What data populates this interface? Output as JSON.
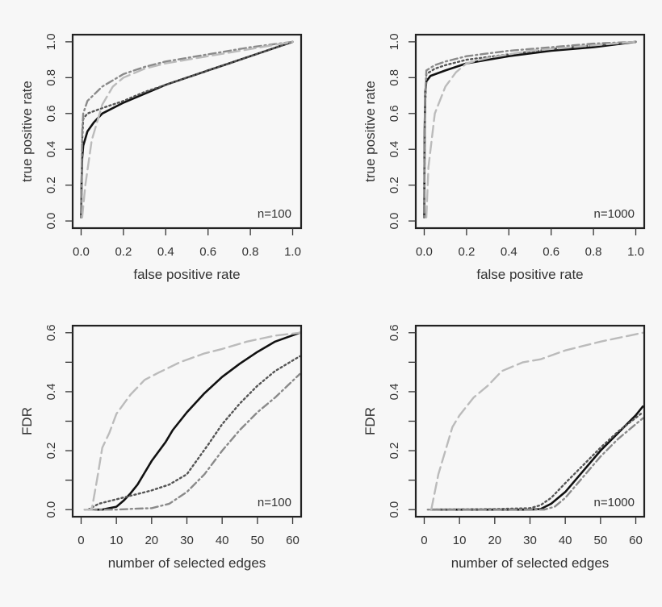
{
  "chart_data": [
    {
      "type": "line",
      "xlabel": "false positive rate",
      "ylabel": "true positive rate",
      "annotation": "n=100",
      "xlim": [
        -0.04,
        1.04
      ],
      "ylim": [
        -0.04,
        1.04
      ],
      "xticks": [
        0,
        0.2,
        0.4,
        0.6,
        0.8,
        1.0
      ],
      "xtick_labels": [
        "0.0",
        "0.2",
        "0.4",
        "0.6",
        "0.8",
        "1.0"
      ],
      "yticks": [
        0,
        0.2,
        0.4,
        0.6,
        0.8,
        1.0
      ],
      "ytick_labels": [
        "0.0",
        "0.2",
        "0.4",
        "0.6",
        "0.8",
        "1.0"
      ],
      "grid": false,
      "series": [
        {
          "style": "solid",
          "color": "#111111",
          "points": [
            [
              0,
              0.02
            ],
            [
              0.002,
              0.2
            ],
            [
              0.005,
              0.35
            ],
            [
              0.01,
              0.42
            ],
            [
              0.03,
              0.5
            ],
            [
              0.06,
              0.55
            ],
            [
              0.1,
              0.6
            ],
            [
              0.2,
              0.66
            ],
            [
              0.3,
              0.71
            ],
            [
              0.4,
              0.76
            ],
            [
              0.5,
              0.8
            ],
            [
              0.6,
              0.84
            ],
            [
              0.7,
              0.88
            ],
            [
              0.8,
              0.92
            ],
            [
              0.9,
              0.96
            ],
            [
              1,
              1
            ]
          ]
        },
        {
          "style": "dotted",
          "color": "#555555",
          "points": [
            [
              0,
              0.02
            ],
            [
              0.005,
              0.45
            ],
            [
              0.01,
              0.57
            ],
            [
              0.03,
              0.6
            ],
            [
              0.1,
              0.63
            ],
            [
              0.2,
              0.67
            ],
            [
              0.3,
              0.72
            ],
            [
              0.4,
              0.76
            ],
            [
              0.5,
              0.8
            ],
            [
              0.6,
              0.84
            ],
            [
              0.7,
              0.88
            ],
            [
              0.8,
              0.92
            ],
            [
              0.9,
              0.96
            ],
            [
              1,
              1
            ]
          ]
        },
        {
          "style": "dotdash",
          "color": "#8a8a8a",
          "points": [
            [
              0,
              0.02
            ],
            [
              0.005,
              0.5
            ],
            [
              0.01,
              0.6
            ],
            [
              0.03,
              0.67
            ],
            [
              0.1,
              0.75
            ],
            [
              0.2,
              0.82
            ],
            [
              0.3,
              0.86
            ],
            [
              0.4,
              0.89
            ],
            [
              0.6,
              0.93
            ],
            [
              0.8,
              0.97
            ],
            [
              1,
              1
            ]
          ]
        },
        {
          "style": "longdash",
          "color": "#bbbbbb",
          "points": [
            [
              0.005,
              0.02
            ],
            [
              0.02,
              0.2
            ],
            [
              0.05,
              0.45
            ],
            [
              0.1,
              0.65
            ],
            [
              0.15,
              0.75
            ],
            [
              0.2,
              0.8
            ],
            [
              0.3,
              0.85
            ],
            [
              0.4,
              0.88
            ],
            [
              0.6,
              0.92
            ],
            [
              0.8,
              0.96
            ],
            [
              1,
              1
            ]
          ]
        }
      ]
    },
    {
      "type": "line",
      "xlabel": "false positive rate",
      "ylabel": "true positive rate",
      "annotation": "n=1000",
      "xlim": [
        -0.04,
        1.04
      ],
      "ylim": [
        -0.04,
        1.04
      ],
      "xticks": [
        0,
        0.2,
        0.4,
        0.6,
        0.8,
        1.0
      ],
      "xtick_labels": [
        "0.0",
        "0.2",
        "0.4",
        "0.6",
        "0.8",
        "1.0"
      ],
      "yticks": [
        0,
        0.2,
        0.4,
        0.6,
        0.8,
        1.0
      ],
      "ytick_labels": [
        "0.0",
        "0.2",
        "0.4",
        "0.6",
        "0.8",
        "1.0"
      ],
      "grid": false,
      "series": [
        {
          "style": "solid",
          "color": "#111111",
          "points": [
            [
              0,
              0.02
            ],
            [
              0.002,
              0.5
            ],
            [
              0.005,
              0.72
            ],
            [
              0.01,
              0.78
            ],
            [
              0.03,
              0.81
            ],
            [
              0.1,
              0.84
            ],
            [
              0.2,
              0.88
            ],
            [
              0.4,
              0.92
            ],
            [
              0.6,
              0.95
            ],
            [
              0.8,
              0.97
            ],
            [
              1,
              1
            ]
          ]
        },
        {
          "style": "dotted",
          "color": "#555555",
          "points": [
            [
              0,
              0.02
            ],
            [
              0.003,
              0.6
            ],
            [
              0.01,
              0.82
            ],
            [
              0.05,
              0.85
            ],
            [
              0.1,
              0.87
            ],
            [
              0.2,
              0.9
            ],
            [
              0.4,
              0.93
            ],
            [
              0.6,
              0.96
            ],
            [
              0.8,
              0.98
            ],
            [
              1,
              1
            ]
          ]
        },
        {
          "style": "dotdash",
          "color": "#8a8a8a",
          "points": [
            [
              0,
              0.02
            ],
            [
              0.003,
              0.65
            ],
            [
              0.01,
              0.84
            ],
            [
              0.05,
              0.87
            ],
            [
              0.1,
              0.89
            ],
            [
              0.2,
              0.92
            ],
            [
              0.4,
              0.95
            ],
            [
              0.6,
              0.97
            ],
            [
              0.8,
              0.99
            ],
            [
              1,
              1
            ]
          ]
        },
        {
          "style": "longdash",
          "color": "#bbbbbb",
          "points": [
            [
              0.01,
              0.02
            ],
            [
              0.02,
              0.3
            ],
            [
              0.05,
              0.6
            ],
            [
              0.1,
              0.75
            ],
            [
              0.15,
              0.83
            ],
            [
              0.2,
              0.88
            ],
            [
              0.3,
              0.91
            ],
            [
              0.5,
              0.95
            ],
            [
              0.8,
              0.98
            ],
            [
              1,
              1
            ]
          ]
        }
      ]
    },
    {
      "type": "line",
      "xlabel": "number of selected edges",
      "ylabel": "FDR",
      "annotation": "n=100",
      "xlim": [
        -2.4,
        62.4
      ],
      "ylim": [
        -0.024,
        0.624
      ],
      "xticks": [
        0,
        10,
        20,
        30,
        40,
        50,
        60
      ],
      "xtick_labels": [
        "0",
        "10",
        "20",
        "30",
        "40",
        "50",
        "60"
      ],
      "yticks": [
        0,
        0.1,
        0.2,
        0.3,
        0.4,
        0.5,
        0.6
      ],
      "ytick_labels": [
        "0.0",
        "",
        "0.2",
        "",
        "0.4",
        "",
        "0.6"
      ],
      "grid": false,
      "series": [
        {
          "style": "solid",
          "color": "#111111",
          "points": [
            [
              4,
              0
            ],
            [
              6,
              0
            ],
            [
              8,
              0.005
            ],
            [
              10,
              0.01
            ],
            [
              12,
              0.03
            ],
            [
              14,
              0.055
            ],
            [
              16,
              0.085
            ],
            [
              18,
              0.125
            ],
            [
              20,
              0.165
            ],
            [
              24,
              0.23
            ],
            [
              26,
              0.27
            ],
            [
              30,
              0.33
            ],
            [
              35,
              0.395
            ],
            [
              40,
              0.45
            ],
            [
              45,
              0.495
            ],
            [
              50,
              0.535
            ],
            [
              55,
              0.57
            ],
            [
              62,
              0.6
            ]
          ]
        },
        {
          "style": "dotted",
          "color": "#555555",
          "points": [
            [
              2,
              0
            ],
            [
              5,
              0.02
            ],
            [
              10,
              0.035
            ],
            [
              15,
              0.05
            ],
            [
              20,
              0.065
            ],
            [
              25,
              0.085
            ],
            [
              30,
              0.12
            ],
            [
              33,
              0.17
            ],
            [
              36,
              0.22
            ],
            [
              40,
              0.29
            ],
            [
              45,
              0.36
            ],
            [
              50,
              0.42
            ],
            [
              55,
              0.47
            ],
            [
              62,
              0.52
            ]
          ]
        },
        {
          "style": "dotdash",
          "color": "#8a8a8a",
          "points": [
            [
              1,
              0
            ],
            [
              10,
              0
            ],
            [
              15,
              0.003
            ],
            [
              20,
              0.005
            ],
            [
              25,
              0.02
            ],
            [
              30,
              0.06
            ],
            [
              35,
              0.12
            ],
            [
              40,
              0.2
            ],
            [
              45,
              0.27
            ],
            [
              50,
              0.33
            ],
            [
              55,
              0.38
            ],
            [
              62,
              0.46
            ]
          ]
        },
        {
          "style": "longdash",
          "color": "#bbbbbb",
          "points": [
            [
              1,
              0
            ],
            [
              3,
              0
            ],
            [
              4.5,
              0.1
            ],
            [
              6,
              0.21
            ],
            [
              8,
              0.26
            ],
            [
              10,
              0.325
            ],
            [
              14,
              0.39
            ],
            [
              18,
              0.44
            ],
            [
              22,
              0.465
            ],
            [
              28,
              0.5
            ],
            [
              35,
              0.53
            ],
            [
              40,
              0.545
            ],
            [
              47,
              0.57
            ],
            [
              55,
              0.59
            ],
            [
              62,
              0.6
            ]
          ]
        }
      ]
    },
    {
      "type": "line",
      "xlabel": "number of selected edges",
      "ylabel": "FDR",
      "annotation": "n=1000",
      "xlim": [
        -2.4,
        62.4
      ],
      "ylim": [
        -0.024,
        0.624
      ],
      "xticks": [
        0,
        10,
        20,
        30,
        40,
        50,
        60
      ],
      "xtick_labels": [
        "0",
        "10",
        "20",
        "30",
        "40",
        "50",
        "60"
      ],
      "yticks": [
        0,
        0.1,
        0.2,
        0.3,
        0.4,
        0.5,
        0.6
      ],
      "ytick_labels": [
        "0.0",
        "",
        "0.2",
        "",
        "0.4",
        "",
        "0.6"
      ],
      "grid": false,
      "series": [
        {
          "style": "solid",
          "color": "#111111",
          "points": [
            [
              2,
              0
            ],
            [
              30,
              0
            ],
            [
              33,
              0.002
            ],
            [
              36,
              0.02
            ],
            [
              40,
              0.06
            ],
            [
              45,
              0.13
            ],
            [
              50,
              0.2
            ],
            [
              55,
              0.26
            ],
            [
              60,
              0.32
            ],
            [
              62,
              0.35
            ]
          ]
        },
        {
          "style": "dotted",
          "color": "#555555",
          "points": [
            [
              2,
              0
            ],
            [
              20,
              0.002
            ],
            [
              30,
              0.005
            ],
            [
              33,
              0.015
            ],
            [
              36,
              0.04
            ],
            [
              40,
              0.09
            ],
            [
              45,
              0.15
            ],
            [
              50,
              0.21
            ],
            [
              55,
              0.265
            ],
            [
              62,
              0.33
            ]
          ]
        },
        {
          "style": "dotdash",
          "color": "#8a8a8a",
          "points": [
            [
              1,
              0
            ],
            [
              34,
              0
            ],
            [
              37,
              0.01
            ],
            [
              40,
              0.04
            ],
            [
              45,
              0.11
            ],
            [
              50,
              0.18
            ],
            [
              55,
              0.24
            ],
            [
              62,
              0.31
            ]
          ]
        },
        {
          "style": "longdash",
          "color": "#bbbbbb",
          "points": [
            [
              2,
              0
            ],
            [
              4,
              0.12
            ],
            [
              6,
              0.2
            ],
            [
              8,
              0.28
            ],
            [
              10,
              0.32
            ],
            [
              14,
              0.38
            ],
            [
              18,
              0.42
            ],
            [
              22,
              0.47
            ],
            [
              28,
              0.5
            ],
            [
              33,
              0.51
            ],
            [
              40,
              0.54
            ],
            [
              50,
              0.57
            ],
            [
              62,
              0.6
            ]
          ]
        }
      ]
    }
  ]
}
